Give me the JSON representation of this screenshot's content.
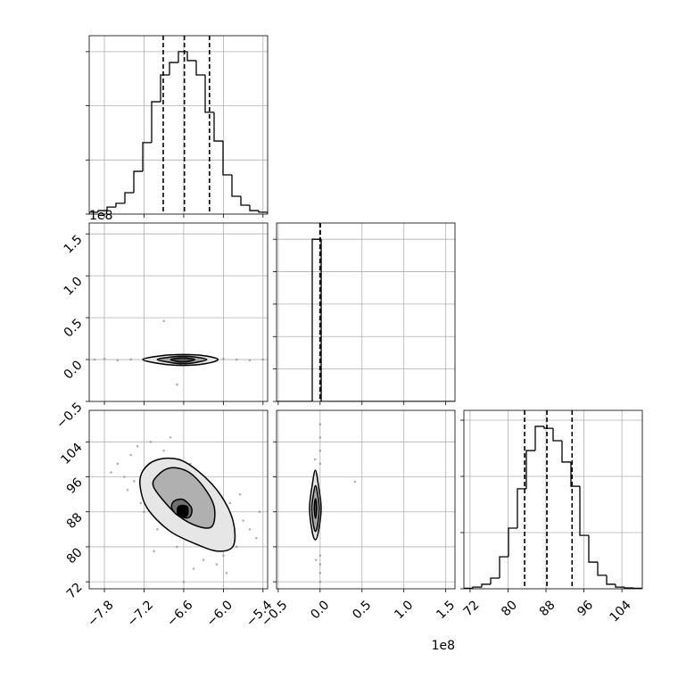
{
  "chart_data": {
    "type": "corner",
    "grid": true,
    "line_color": "#000000",
    "point_color": "#808080",
    "grid_color": "#b0b0b0",
    "panels": [
      {
        "type": "hist",
        "xlim": [
          -8.03,
          -5.33
        ],
        "xticks": [
          -7.8,
          -7.2,
          -6.6,
          -6.0,
          -5.4
        ],
        "ylim": [
          0,
          659
        ],
        "yticks": [
          0,
          200,
          400,
          600
        ],
        "bins": [
          -8.03,
          -7.895,
          -7.76,
          -7.625,
          -7.49,
          -7.355,
          -7.22,
          -7.085,
          -6.95,
          -6.815,
          -6.68,
          -6.545,
          -6.41,
          -6.275,
          -6.14,
          -6.005,
          -5.87,
          -5.735,
          -5.6,
          -5.465,
          -5.33
        ],
        "counts": [
          7,
          13,
          26,
          40,
          79,
          158,
          264,
          415,
          514,
          560,
          600,
          567,
          514,
          376,
          270,
          145,
          66,
          33,
          13,
          7
        ],
        "quantiles": [
          -6.91,
          -6.59,
          -6.21
        ]
      },
      {
        "type": "2d",
        "xlim": [
          -8.03,
          -5.33
        ],
        "xticks": [
          -7.8,
          -7.2,
          -6.6,
          -6.0,
          -5.4
        ],
        "ylim": [
          -0.5,
          1.63
        ],
        "yticks": [
          {
            "value": -0.5,
            "label": "−0.5"
          },
          {
            "value": 0,
            "label": "0.0"
          },
          0.5,
          {
            "value": 1,
            "label": "1.0"
          },
          1.5
        ],
        "show_yticklabels": true,
        "y_offset_label": "1e8",
        "points": {
          "x": [
            -7.95,
            -7.8,
            -7.6,
            -7.4,
            -7.2,
            -7.0,
            -6.2,
            -6.0,
            -5.8,
            -5.6,
            -5.4,
            -6.9,
            -6.7
          ],
          "y": [
            0,
            0.01,
            -0.01,
            0,
            0.01,
            -0.01,
            0,
            0.01,
            0,
            -0.01,
            0,
            0.46,
            -0.3
          ]
        },
        "contours": [
          {
            "fill": "#e6e6e6",
            "x": [
              -7.22,
              -6.95,
              -6.615,
              -6.28,
              -6.08,
              -6.28,
              -6.615,
              -6.95
            ],
            "y": [
              0,
              0.045,
              0.06,
              0.045,
              0,
              -0.05,
              -0.07,
              -0.05
            ]
          },
          {
            "fill": "#a8a8a8",
            "x": [
              -7.0,
              -6.8,
              -6.615,
              -6.42,
              -6.25,
              -6.42,
              -6.615,
              -6.8
            ],
            "y": [
              0,
              0.03,
              0.04,
              0.03,
              0,
              -0.035,
              -0.05,
              -0.035
            ]
          },
          {
            "fill": "#555555",
            "x": [
              -6.8,
              -6.615,
              -6.43,
              -6.615
            ],
            "y": [
              0,
              0.02,
              0,
              -0.03
            ]
          }
        ]
      },
      {
        "type": "hist",
        "xlim": [
          -0.52,
          1.61
        ],
        "xticks": [
          -0.5,
          0,
          0.5,
          1,
          1.5
        ],
        "ylim": [
          0,
          11000
        ],
        "yticks": [
          0,
          2000,
          4000,
          6000,
          8000,
          10000
        ],
        "bins": [
          -0.52,
          -0.414,
          -0.307,
          -0.201,
          -0.094,
          0.013,
          0.119,
          0.226,
          0.332,
          0.439,
          0.545,
          0.652,
          0.758,
          0.865,
          0.971,
          1.078,
          1.184,
          1.291,
          1.397,
          1.504,
          1.61
        ],
        "counts": [
          0,
          0,
          0,
          0,
          10000,
          0,
          0,
          0,
          0,
          0,
          0,
          0,
          0,
          0,
          0,
          0,
          0,
          0,
          0,
          0
        ],
        "quantiles": [
          -0.002,
          0,
          0.002
        ]
      },
      {
        "type": "2d",
        "xlim": [
          -8.03,
          -5.33
        ],
        "xticks": [
          {
            "value": -7.8,
            "label": "−7.8"
          },
          {
            "value": -7.2,
            "label": "−7.2"
          },
          {
            "value": -6.6,
            "label": "−6.6"
          },
          {
            "value": -6.0,
            "label": "−6.0"
          },
          {
            "value": -5.4,
            "label": "−5.4"
          }
        ],
        "show_xticklabels": true,
        "ylim": [
          70.4,
          111.2
        ],
        "yticks": [
          72,
          80,
          88,
          96,
          104
        ],
        "show_yticklabels": true,
        "points": {
          "x": [
            -7.6,
            -7.4,
            -7.5,
            -7.3,
            -7.1,
            -7.45,
            -7.25,
            -6.9,
            -6.5,
            -6.2,
            -5.9,
            -5.7,
            -5.6,
            -5.8,
            -6.0,
            -6.3,
            -6.7,
            -7.0,
            -7.2,
            -5.5,
            -6.1,
            -6.8,
            -7.35,
            -5.95,
            -6.45,
            -7.7,
            -5.45,
            -6.6,
            -7.05,
            -5.75
          ],
          "y": [
            99,
            101,
            96,
            103,
            104,
            93,
            90,
            102,
            99,
            94,
            90,
            86,
            84,
            80,
            78,
            77,
            80,
            84,
            88,
            82,
            76,
            105,
            95,
            74,
            75,
            97,
            88,
            72,
            79,
            92
          ]
        },
        "contours": [
          {
            "fill": "#e6e6e6",
            "x": [
              -7.22,
              -7.02,
              -6.68,
              -6.35,
              -6.04,
              -5.85,
              -5.85,
              -6.08,
              -6.41,
              -6.82,
              -7.15,
              -7.26
            ],
            "y": [
              97.3,
              99.8,
              100.0,
              96.9,
              91.8,
              85.7,
              80.2,
              79.0,
              80.6,
              83.7,
              88.8,
              93.9
            ]
          },
          {
            "fill": "#b0b0b0",
            "x": [
              -7.02,
              -6.82,
              -6.55,
              -6.31,
              -6.14,
              -6.17,
              -6.39,
              -6.68,
              -6.92,
              -7.06
            ],
            "y": [
              95.9,
              98.0,
              97.3,
              93.9,
              89.2,
              84.7,
              84.7,
              87.1,
              90.8,
              93.9
            ]
          },
          {
            "fill": "#707070",
            "x": [
              -6.75,
              -6.61,
              -6.48,
              -6.52,
              -6.68,
              -6.78
            ],
            "y": [
              90.4,
              90.8,
              88.8,
              86.7,
              87.1,
              88.8
            ]
          },
          {
            "fill": "#000000",
            "x": [
              -6.68,
              -6.55,
              -6.55,
              -6.68
            ],
            "y": [
              89.2,
              89.2,
              87.1,
              87.1
            ]
          }
        ]
      },
      {
        "type": "2d",
        "xlim": [
          -0.52,
          1.61
        ],
        "xticks": [
          {
            "value": -0.5,
            "label": "−0.5"
          },
          {
            "value": 0,
            "label": "0.0"
          },
          0.5,
          {
            "value": 1,
            "label": "1.0"
          },
          1.5
        ],
        "show_xticklabels": true,
        "x_offset_label": "1e8",
        "ylim": [
          70.4,
          111.2
        ],
        "yticks": [
          72,
          80,
          88,
          96,
          104
        ],
        "points": {
          "x": [
            0,
            0,
            0,
            0,
            0,
            0,
            0,
            0,
            0.416,
            -0.06,
            -0.05
          ],
          "y": [
            108,
            105,
            102,
            99,
            78,
            76,
            74,
            72,
            94.9,
            100,
            77
          ]
        },
        "contours": [
          {
            "fill": "#e6e6e6",
            "x": [
              -0.057,
              -0.02,
              0.012,
              -0.02,
              -0.057,
              -0.095,
              -0.126,
              -0.095
            ],
            "y": [
              97.5,
              94,
              88.8,
              83.5,
              81.6,
              83.5,
              88.8,
              94
            ]
          },
          {
            "fill": "#a8a8a8",
            "x": [
              -0.055,
              -0.03,
              -0.01,
              -0.03,
              -0.055,
              -0.08,
              -0.1,
              -0.08
            ],
            "y": [
              94,
              92,
              88.8,
              85,
              83.5,
              85,
              88.8,
              92
            ]
          },
          {
            "fill": "#404040",
            "x": [
              -0.055,
              -0.04,
              -0.055,
              -0.07
            ],
            "y": [
              91,
              88.8,
              86.5,
              88.8
            ]
          }
        ]
      },
      {
        "type": "hist",
        "xlim": [
          70.7,
          108.3
        ],
        "xticks": [
          72,
          80,
          88,
          96,
          104
        ],
        "show_xticklabels": true,
        "ylim": [
          0,
          635
        ],
        "yticks": [
          0,
          200,
          400,
          600
        ],
        "bins": [
          70.7,
          72.58,
          74.46,
          76.34,
          78.22,
          80.1,
          81.98,
          83.86,
          85.74,
          87.62,
          89.5,
          91.38,
          93.26,
          95.14,
          97.02,
          98.9,
          100.78,
          102.66,
          104.54,
          106.42,
          108.3
        ],
        "counts": [
          2,
          6,
          16,
          38,
          114,
          216,
          356,
          492,
          578,
          571,
          527,
          451,
          365,
          190,
          95,
          48,
          16,
          6,
          3,
          2
        ],
        "quantiles": [
          83.5,
          88.2,
          93.5
        ]
      }
    ]
  }
}
